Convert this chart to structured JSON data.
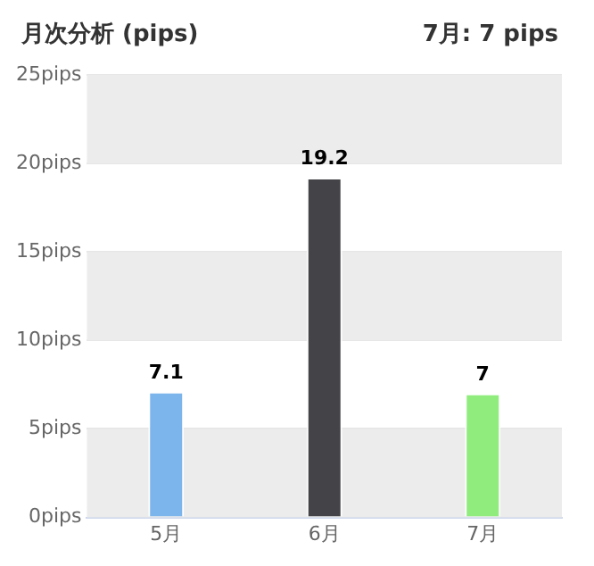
{
  "chart_data": {
    "type": "bar",
    "title": "月次分析 (pips)",
    "subtitle": "7月: 7 pips",
    "categories": [
      "5月",
      "6月",
      "7月"
    ],
    "values": [
      7.1,
      19.2,
      7
    ],
    "colors": [
      "#7cb5ec",
      "#434348",
      "#90ed7d"
    ],
    "ylim": [
      0,
      25
    ],
    "yticks": [
      {
        "value": 0,
        "label": "0pips"
      },
      {
        "value": 5,
        "label": "5pips"
      },
      {
        "value": 10,
        "label": "10pips"
      },
      {
        "value": 15,
        "label": "15pips"
      },
      {
        "value": 20,
        "label": "20pips"
      },
      {
        "value": 25,
        "label": "25pips"
      }
    ],
    "bands": [
      {
        "axis": "y",
        "from": 0,
        "to": 5,
        "color": "#ececec"
      },
      {
        "axis": "y",
        "from": 10,
        "to": 15,
        "color": "#ececec"
      },
      {
        "axis": "y",
        "from": 20,
        "to": 25,
        "color": "#ececec"
      }
    ],
    "grid": "y",
    "data_labels": true,
    "legend": false
  }
}
